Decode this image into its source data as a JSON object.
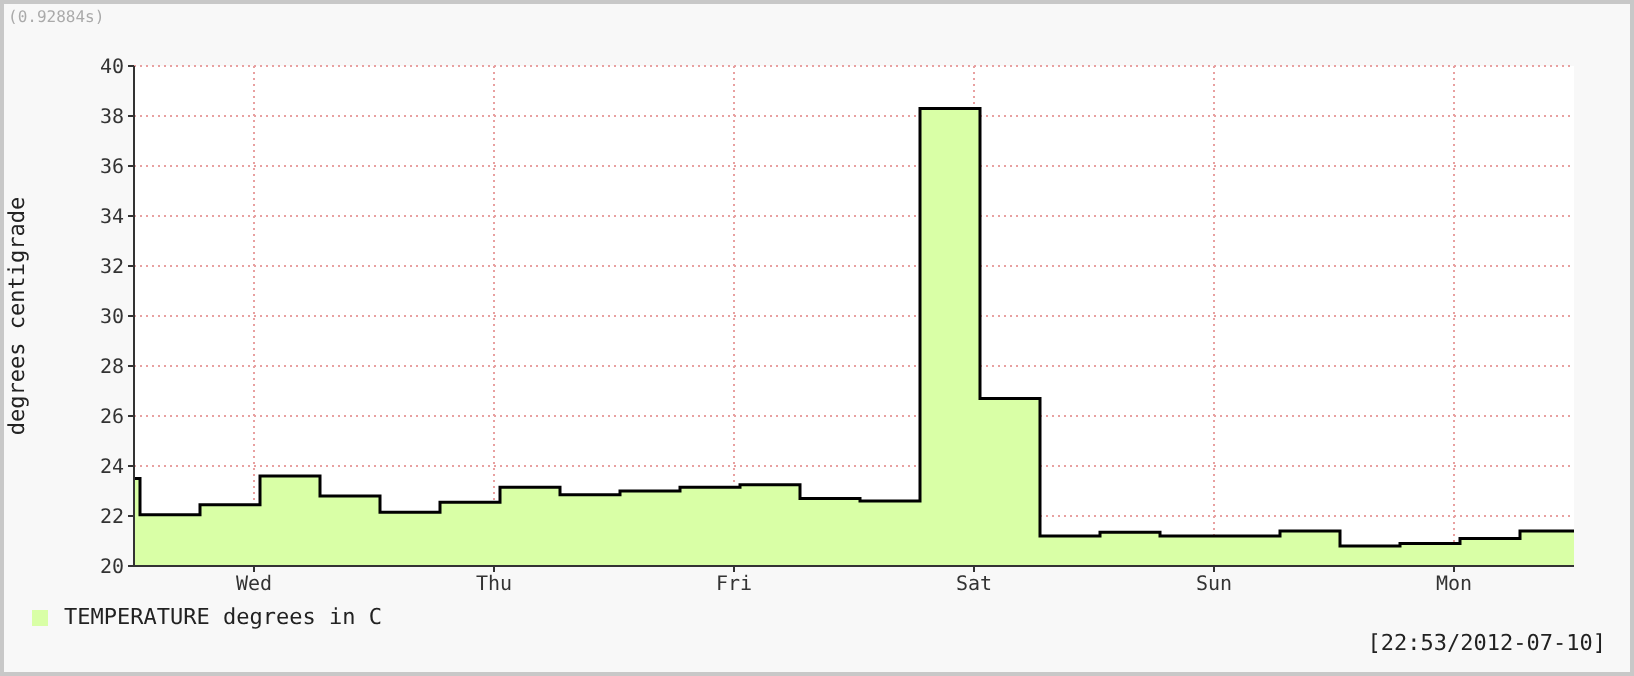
{
  "chart_data": {
    "type": "area",
    "ylabel": "degrees centigrade",
    "annotations": [
      "(0.92884s)",
      "[22:53/2012-07-10]"
    ],
    "categories": [
      null,
      null,
      null,
      null,
      null,
      null,
      null,
      null,
      null,
      null,
      null,
      null,
      null,
      null,
      null,
      null,
      null,
      null,
      null,
      null,
      "Wed",
      null,
      null,
      null,
      null,
      null,
      null,
      null,
      null,
      null,
      null,
      null,
      null,
      null,
      null,
      null,
      null,
      null,
      null,
      null,
      null,
      null,
      null,
      null,
      null,
      null,
      null,
      null,
      null,
      null,
      null,
      null,
      null,
      null,
      null,
      null,
      null,
      null,
      null,
      null,
      "Thu",
      null,
      null,
      null,
      null,
      null,
      null,
      null,
      null,
      null,
      null,
      null,
      null,
      null,
      null,
      null,
      null,
      null,
      null,
      null,
      null,
      null,
      null,
      null,
      null,
      null,
      null,
      null,
      null,
      null,
      null,
      null,
      null,
      null,
      null,
      null,
      null,
      null,
      null,
      null,
      "Fri",
      null,
      null,
      null,
      null,
      null,
      null,
      null,
      null,
      null,
      null,
      null,
      null,
      null,
      null,
      null,
      null,
      null,
      null,
      null,
      null,
      null,
      null,
      null,
      null,
      null,
      null,
      null,
      null,
      null,
      null,
      null,
      null,
      null,
      null,
      null,
      null,
      null,
      null,
      null,
      "Sat",
      null,
      null,
      null,
      null,
      null,
      null,
      null,
      null,
      null,
      null,
      null,
      null,
      null,
      null,
      null,
      null,
      null,
      null,
      null,
      null,
      null,
      null,
      null,
      null,
      null,
      null,
      null,
      null,
      null,
      null,
      null,
      null,
      null,
      null,
      null,
      null,
      null,
      null,
      null,
      "Sun",
      null,
      null,
      null,
      null,
      null,
      null,
      null,
      null,
      null,
      null,
      null,
      null,
      null,
      null,
      null,
      null,
      null,
      null,
      null,
      null,
      null,
      null,
      null,
      null,
      null,
      null,
      null,
      null,
      null,
      null,
      null,
      null,
      null,
      null,
      null,
      null,
      null,
      null,
      null,
      "Mon",
      null,
      null,
      null,
      null,
      null,
      null,
      null,
      null,
      null,
      null,
      null,
      null,
      null,
      null,
      null,
      null,
      null,
      null,
      null,
      null
    ],
    "series": [
      {
        "name": "TEMPERATURE degrees in C",
        "color": "#d9ffa6",
        "values": [
          23.5,
          22.05,
          22.05,
          22.05,
          22.05,
          22.05,
          22.05,
          22.05,
          22.05,
          22.05,
          22.05,
          22.45,
          22.45,
          22.45,
          22.45,
          22.45,
          22.45,
          22.45,
          22.45,
          22.45,
          22.45,
          23.6,
          23.6,
          23.6,
          23.6,
          23.6,
          23.6,
          23.6,
          23.6,
          23.6,
          23.6,
          22.8,
          22.8,
          22.8,
          22.8,
          22.8,
          22.8,
          22.8,
          22.8,
          22.8,
          22.8,
          22.15,
          22.15,
          22.15,
          22.15,
          22.15,
          22.15,
          22.15,
          22.15,
          22.15,
          22.15,
          22.55,
          22.55,
          22.55,
          22.55,
          22.55,
          22.55,
          22.55,
          22.55,
          22.55,
          22.55,
          23.15,
          23.15,
          23.15,
          23.15,
          23.15,
          23.15,
          23.15,
          23.15,
          23.15,
          23.15,
          22.85,
          22.85,
          22.85,
          22.85,
          22.85,
          22.85,
          22.85,
          22.85,
          22.85,
          22.85,
          23.0,
          23.0,
          23.0,
          23.0,
          23.0,
          23.0,
          23.0,
          23.0,
          23.0,
          23.0,
          23.15,
          23.15,
          23.15,
          23.15,
          23.15,
          23.15,
          23.15,
          23.15,
          23.15,
          23.15,
          23.25,
          23.25,
          23.25,
          23.25,
          23.25,
          23.25,
          23.25,
          23.25,
          23.25,
          23.25,
          22.7,
          22.7,
          22.7,
          22.7,
          22.7,
          22.7,
          22.7,
          22.7,
          22.7,
          22.7,
          22.6,
          22.6,
          22.6,
          22.6,
          22.6,
          22.6,
          22.6,
          22.6,
          22.6,
          22.6,
          38.3,
          38.3,
          38.3,
          38.3,
          38.3,
          38.3,
          38.3,
          38.3,
          38.3,
          38.3,
          26.7,
          26.7,
          26.7,
          26.7,
          26.7,
          26.7,
          26.7,
          26.7,
          26.7,
          26.7,
          21.2,
          21.2,
          21.2,
          21.2,
          21.2,
          21.2,
          21.2,
          21.2,
          21.2,
          21.2,
          21.35,
          21.35,
          21.35,
          21.35,
          21.35,
          21.35,
          21.35,
          21.35,
          21.35,
          21.35,
          21.2,
          21.2,
          21.2,
          21.2,
          21.2,
          21.2,
          21.2,
          21.2,
          21.2,
          21.2,
          21.2,
          21.2,
          21.2,
          21.2,
          21.2,
          21.2,
          21.2,
          21.2,
          21.2,
          21.2,
          21.4,
          21.4,
          21.4,
          21.4,
          21.4,
          21.4,
          21.4,
          21.4,
          21.4,
          21.4,
          20.8,
          20.8,
          20.8,
          20.8,
          20.8,
          20.8,
          20.8,
          20.8,
          20.8,
          20.8,
          20.9,
          20.9,
          20.9,
          20.9,
          20.9,
          20.9,
          20.9,
          20.9,
          20.9,
          20.9,
          21.1,
          21.1,
          21.1,
          21.1,
          21.1,
          21.1,
          21.1,
          21.1,
          21.1,
          21.1,
          21.4,
          21.4,
          21.4,
          21.4,
          21.4,
          21.4,
          21.4,
          21.4,
          21.4,
          21.4
        ]
      }
    ],
    "ylim": [
      20,
      40
    ],
    "yticks": [
      20,
      22,
      24,
      26,
      28,
      30,
      32,
      34,
      36,
      38,
      40
    ],
    "grid": true,
    "legend": "bottom left"
  }
}
